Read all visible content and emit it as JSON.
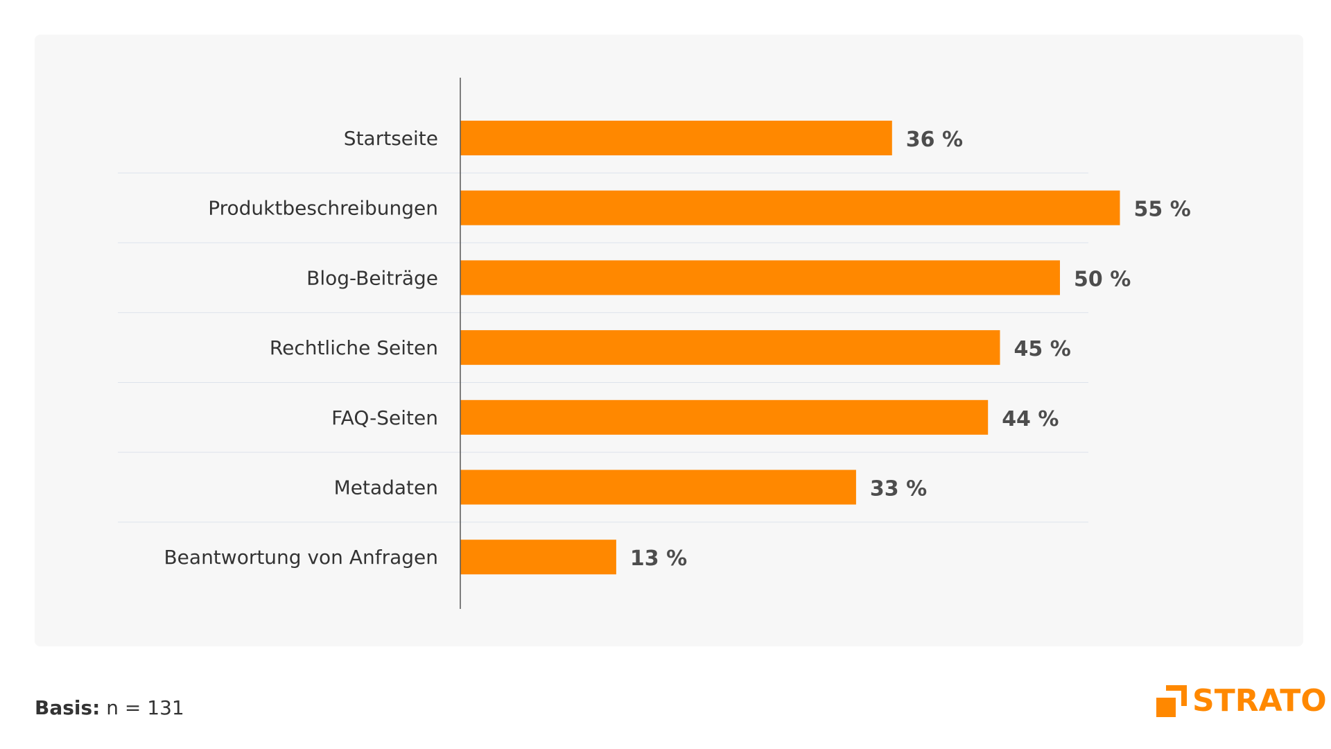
{
  "chart_data": {
    "type": "bar",
    "orientation": "horizontal",
    "categories": [
      "Startseite",
      "Produktbeschreibungen",
      "Blog-Beiträge",
      "Rechtliche Seiten",
      "FAQ-Seiten",
      "Metadaten",
      "Beantwortung von Anfragen"
    ],
    "values": [
      36,
      55,
      50,
      45,
      44,
      33,
      13
    ],
    "value_labels": [
      "36 %",
      "55 %",
      "50 %",
      "45 %",
      "44 %",
      "33 %",
      "13 %"
    ],
    "title": "",
    "xlabel": "",
    "ylabel": "",
    "grid": false,
    "bar_color": "#ff8800",
    "label_color": "#333333",
    "value_label_color": "#4d4d4d",
    "axis_color": "#555555",
    "separator_color": "#dde3ec"
  },
  "footer": {
    "basis_label": "Basis:",
    "basis_value": " n = 131"
  },
  "logo": {
    "text": "STRATO",
    "color": "#ff8800"
  }
}
